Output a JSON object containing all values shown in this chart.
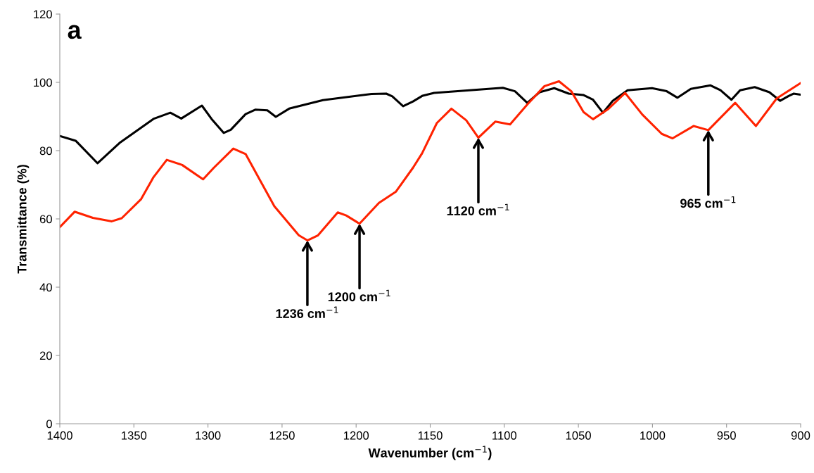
{
  "chart_data": {
    "type": "line",
    "title": "a",
    "xlabel": "Wavenumber (cm$^{−1}$)",
    "ylabel": "Transmittance (%)",
    "xlim": [
      1400,
      900
    ],
    "xticks": [
      1400,
      1350,
      1300,
      1250,
      1200,
      1150,
      1100,
      1050,
      1000,
      950,
      900
    ],
    "ylim": [
      0,
      120
    ],
    "yticks": [
      0,
      20,
      40,
      60,
      80,
      100,
      120
    ],
    "grid": false,
    "legend": false,
    "marker": "none",
    "line_style": "solid",
    "series": [
      {
        "color": "#000000",
        "x": [
          1400,
          1389.3,
          1374.5,
          1359.8,
          1336.8,
          1325.4,
          1318.0,
          1304.1,
          1297.6,
          1289.4,
          1284.6,
          1274.6,
          1268.1,
          1259.9,
          1254.2,
          1245.2,
          1222.4,
          1189.6,
          1179.7,
          1175.6,
          1168.3,
          1161.6,
          1155.1,
          1147.4,
          1101.0,
          1092.8,
          1084.5,
          1076.2,
          1066.3,
          1056.5,
          1046.7,
          1040.1,
          1033.4,
          1026.8,
          1016.8,
          1000.3,
          990.4,
          983.1,
          974.1,
          960.8,
          954.1,
          946.7,
          940.8,
          931.0,
          921.1,
          913.8,
          908.1,
          904.8,
          900
        ],
        "values": [
          84.3,
          82.9,
          76.3,
          82.2,
          89.3,
          91.1,
          89.4,
          93.2,
          89.3,
          85.2,
          86.1,
          90.7,
          92.0,
          91.8,
          89.9,
          92.3,
          94.8,
          96.6,
          96.7,
          95.9,
          93.0,
          94.4,
          96.1,
          96.9,
          98.4,
          97.4,
          94.0,
          97.1,
          98.3,
          96.7,
          96.3,
          94.9,
          91.1,
          94.6,
          97.7,
          98.3,
          97.4,
          95.5,
          98.1,
          99.1,
          97.7,
          94.9,
          97.7,
          98.6,
          97.1,
          94.6,
          96.0,
          96.7,
          96.4
        ]
      },
      {
        "color": "#ff2200",
        "x": [
          1400,
          1390.0,
          1377.7,
          1364.9,
          1358.2,
          1345.1,
          1336.8,
          1327.8,
          1317.4,
          1303.3,
          1296.0,
          1282.9,
          1274.6,
          1255.2,
          1238.7,
          1232.9,
          1225.7,
          1212.4,
          1206.7,
          1197.7,
          1184.6,
          1173.1,
          1161.6,
          1155.5,
          1145.5,
          1135.7,
          1125.7,
          1117.5,
          1106.1,
          1096.1,
          1084.5,
          1072.9,
          1063.1,
          1054.8,
          1046.5,
          1040.1,
          1030.1,
          1018.5,
          1006.9,
          993.7,
          986.4,
          972.3,
          962.3,
          944.2,
          930.2,
          916.1,
          900
        ],
        "values": [
          57.6,
          62.1,
          60.3,
          59.3,
          60.2,
          65.8,
          72.2,
          77.3,
          75.8,
          71.6,
          75.0,
          80.6,
          79.0,
          63.7,
          55.2,
          53.7,
          55.2,
          61.9,
          61.0,
          58.6,
          64.7,
          68.0,
          75.0,
          79.2,
          88.1,
          92.3,
          88.9,
          83.8,
          88.5,
          87.7,
          93.5,
          98.9,
          100.3,
          97.4,
          91.3,
          89.2,
          92.1,
          96.9,
          90.6,
          84.9,
          83.6,
          87.2,
          86.0,
          94.0,
          87.2,
          95.3,
          99.8
        ]
      }
    ],
    "annotations": [
      {
        "text": "1236 cm$^{−1}$",
        "x": 1232.9,
        "y": 53.7
      },
      {
        "text": "1200 cm$^{−1}$",
        "x": 1197.7,
        "y": 58.6
      },
      {
        "text": "1120 cm$^{−1}$",
        "x": 1117.5,
        "y": 83.8
      },
      {
        "text": "965 cm$^{−1}$",
        "x": 962.3,
        "y": 86.0
      }
    ]
  }
}
